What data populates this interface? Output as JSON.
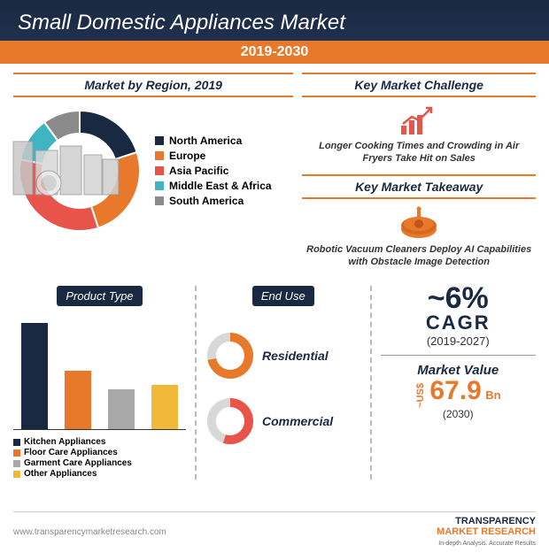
{
  "header": {
    "title": "Small Domestic Appliances Market",
    "period": "2019-2030"
  },
  "region": {
    "title": "Market by Region, 2019",
    "slices": [
      {
        "label": "North America",
        "color": "#1a2942",
        "value": 20
      },
      {
        "label": "Europe",
        "color": "#e8792a",
        "value": 25
      },
      {
        "label": "Asia Pacific",
        "color": "#e8534a",
        "value": 33
      },
      {
        "label": "Middle East & Africa",
        "color": "#3fb5c4",
        "value": 12
      },
      {
        "label": "South America",
        "color": "#8a8a8a",
        "value": 10
      }
    ],
    "inner_radius": 42,
    "outer_radius": 68,
    "bg": "#ffffff"
  },
  "challenge": {
    "title": "Key Market Challenge",
    "text": "Longer Cooking Times and Crowding in Air Fryers Take Hit on Sales",
    "icon_color": "#e8534a"
  },
  "takeaway": {
    "title": "Key Market Takeaway",
    "text": "Robotic Vacuum Cleaners Deploy AI Capabilities with Obstacle Image Detection",
    "icon_color": "#e8792a"
  },
  "product": {
    "title": "Product Type",
    "bars": [
      {
        "label": "Kitchen Appliances",
        "color": "#1a2942",
        "value": 100
      },
      {
        "label": "Floor Care Appliances",
        "color": "#e8792a",
        "value": 55
      },
      {
        "label": "Garment Care Appliances",
        "color": "#a8a8a8",
        "value": 38
      },
      {
        "label": "Other Appliances",
        "color": "#f2b838",
        "value": 42
      }
    ],
    "max_height": 120
  },
  "enduse": {
    "title": "End Use",
    "items": [
      {
        "label": "Residential",
        "pct": 72,
        "color": "#e8792a",
        "bg": "#d8d8d8"
      },
      {
        "label": "Commercial",
        "pct": 55,
        "color": "#e8534a",
        "bg": "#d8d8d8"
      }
    ],
    "ring_outer": 26,
    "ring_inner": 16
  },
  "stats": {
    "cagr_value": "~6%",
    "cagr_label": "CAGR",
    "cagr_period": "(2019-2027)",
    "mv_label": "Market Value",
    "mv_prefix": "~US$",
    "mv_value": "67.9",
    "mv_unit": "Bn",
    "mv_year": "(2030)"
  },
  "footer": {
    "url": "www.transparencymarketresearch.com",
    "logo1": "TRANSPARENCY",
    "logo2": "MARKET RESEARCH",
    "tagline": "In-depth Analysis. Accurate Results"
  }
}
